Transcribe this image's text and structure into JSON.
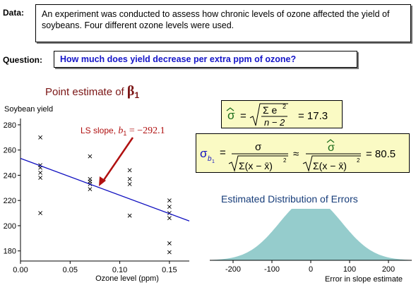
{
  "data_section": {
    "label": "Data:",
    "text": "An experiment was conducted to assess how chronic levels of ozone affected the yield of soybeans. Four different ozone levels were used."
  },
  "question_section": {
    "label": "Question:",
    "text": "How  much does yield decrease per extra ppm of ozone?"
  },
  "scatter": {
    "title_prefix": "Point estimate of ",
    "title_symbol": "β",
    "title_subscript": "1",
    "ylabel": "Soybean yield",
    "xlabel": "Ozone level (ppm)",
    "x_ticks": [
      "0.00",
      "0.05",
      "0.10",
      "0.15"
    ],
    "y_ticks": [
      "180",
      "200",
      "220",
      "240",
      "260",
      "280"
    ],
    "ls_label": "LS slope, ",
    "ls_symbol": "b",
    "ls_subscript": "1",
    "ls_value": " = −292.1",
    "colors": {
      "line": "#1010c0",
      "annotation": "#b01010",
      "title": "#7a1414"
    }
  },
  "formulas": {
    "sigma_hat_value": "=  17.3",
    "sigma_b1_value": "=  80.5",
    "sigma_color": "#1a6b1a",
    "sigma_b1_color": "#1010c0"
  },
  "distribution": {
    "title": "Estimated Distribution of Errors",
    "x_ticks": [
      "-200",
      "-100",
      "0",
      "100",
      "200"
    ],
    "xlabel": "Error in slope estimate",
    "fill_color": "#95cccc"
  },
  "chart_data": [
    {
      "type": "scatter",
      "title": "Point estimate of β1",
      "xlabel": "Ozone level (ppm)",
      "ylabel": "Soybean yield",
      "xlim": [
        0,
        0.17
      ],
      "ylim": [
        172,
        285
      ],
      "points": [
        {
          "x": 0.02,
          "y": 270
        },
        {
          "x": 0.02,
          "y": 248
        },
        {
          "x": 0.02,
          "y": 246
        },
        {
          "x": 0.02,
          "y": 242
        },
        {
          "x": 0.02,
          "y": 238
        },
        {
          "x": 0.02,
          "y": 210
        },
        {
          "x": 0.07,
          "y": 255
        },
        {
          "x": 0.07,
          "y": 237
        },
        {
          "x": 0.07,
          "y": 235
        },
        {
          "x": 0.07,
          "y": 233
        },
        {
          "x": 0.07,
          "y": 229
        },
        {
          "x": 0.11,
          "y": 244
        },
        {
          "x": 0.11,
          "y": 237
        },
        {
          "x": 0.11,
          "y": 233
        },
        {
          "x": 0.11,
          "y": 208
        },
        {
          "x": 0.15,
          "y": 220
        },
        {
          "x": 0.15,
          "y": 215
        },
        {
          "x": 0.15,
          "y": 210
        },
        {
          "x": 0.15,
          "y": 206
        },
        {
          "x": 0.15,
          "y": 186
        },
        {
          "x": 0.15,
          "y": 179
        }
      ],
      "fit_line": {
        "intercept": 253.4,
        "slope": -292.1
      }
    },
    {
      "type": "area",
      "title": "Estimated Distribution of Errors",
      "xlabel": "Error in slope estimate",
      "xlim": [
        -260,
        260
      ],
      "distribution": "normal",
      "mean": 0,
      "sd": 80.5
    }
  ]
}
